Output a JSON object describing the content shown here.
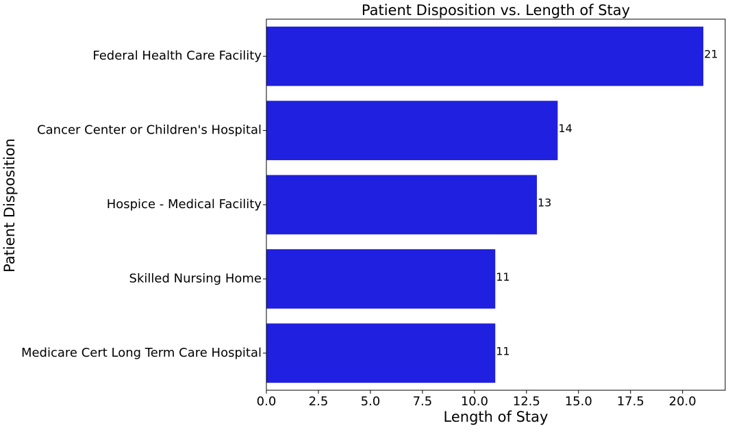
{
  "chart_data": {
    "type": "bar",
    "orientation": "horizontal",
    "title": "Patient Disposition vs. Length of Stay",
    "xlabel": "Length of Stay",
    "ylabel": "Patient Disposition",
    "categories": [
      "Federal Health Care Facility",
      "Cancer Center or Children's Hospital",
      "Hospice - Medical Facility",
      "Skilled Nursing Home",
      "Medicare Cert Long Term Care Hospital"
    ],
    "values": [
      21,
      14,
      13,
      11,
      11
    ],
    "data_labels": [
      "21",
      "14",
      "13",
      "11",
      "11"
    ],
    "xlim": [
      0,
      22.05
    ],
    "xticks": [
      0,
      2.5,
      5,
      7.5,
      10,
      12.5,
      15,
      17.5,
      20
    ],
    "xtick_labels": [
      "0.0",
      "2.5",
      "5.0",
      "7.5",
      "10.0",
      "12.5",
      "15.0",
      "17.5",
      "20.0"
    ],
    "grid": false,
    "legend": "none",
    "bar_color": "#2020e0"
  }
}
